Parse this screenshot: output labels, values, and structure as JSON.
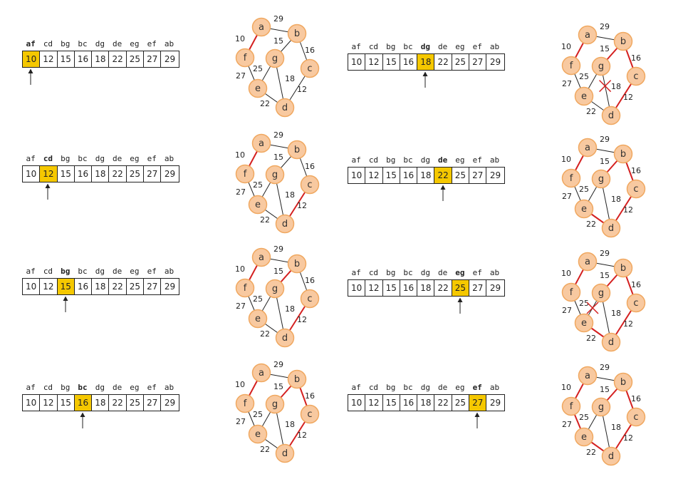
{
  "edge_labels": [
    "af",
    "cd",
    "bg",
    "bc",
    "dg",
    "de",
    "eg",
    "ef",
    "ab"
  ],
  "edge_weights": [
    "10",
    "12",
    "15",
    "16",
    "18",
    "22",
    "25",
    "27",
    "29"
  ],
  "nodes": [
    "a",
    "b",
    "c",
    "d",
    "e",
    "f",
    "g"
  ],
  "edges": [
    {
      "u": "a",
      "v": "f",
      "w": "10"
    },
    {
      "u": "a",
      "v": "b",
      "w": "29"
    },
    {
      "u": "b",
      "v": "g",
      "w": "15"
    },
    {
      "u": "b",
      "v": "c",
      "w": "16"
    },
    {
      "u": "c",
      "v": "d",
      "w": "12"
    },
    {
      "u": "d",
      "v": "g",
      "w": "18"
    },
    {
      "u": "d",
      "v": "e",
      "w": "22"
    },
    {
      "u": "e",
      "v": "g",
      "w": "25"
    },
    {
      "u": "e",
      "v": "f",
      "w": "27"
    }
  ],
  "steps": [
    {
      "index": 0,
      "red": [
        "af"
      ],
      "crossed": null
    },
    {
      "index": 1,
      "red": [
        "af",
        "cd"
      ],
      "crossed": null
    },
    {
      "index": 2,
      "red": [
        "af",
        "cd",
        "bg"
      ],
      "crossed": null
    },
    {
      "index": 3,
      "red": [
        "af",
        "cd",
        "bg",
        "bc"
      ],
      "crossed": null
    },
    {
      "index": 4,
      "red": [
        "af",
        "cd",
        "bg",
        "bc"
      ],
      "crossed": "dg"
    },
    {
      "index": 5,
      "red": [
        "af",
        "cd",
        "bg",
        "bc",
        "de"
      ],
      "crossed": null
    },
    {
      "index": 6,
      "red": [
        "af",
        "cd",
        "bg",
        "bc",
        "de"
      ],
      "crossed": "eg"
    },
    {
      "index": 7,
      "red": [
        "af",
        "cd",
        "bg",
        "bc",
        "de",
        "ef"
      ],
      "crossed": null
    }
  ],
  "colors": {
    "highlight": "#f5c800",
    "node_fill": "#f8c9a0",
    "node_stroke": "#f0a860",
    "mst_edge": "#d42020",
    "plain_edge": "#222222",
    "cross": "#d42020"
  }
}
